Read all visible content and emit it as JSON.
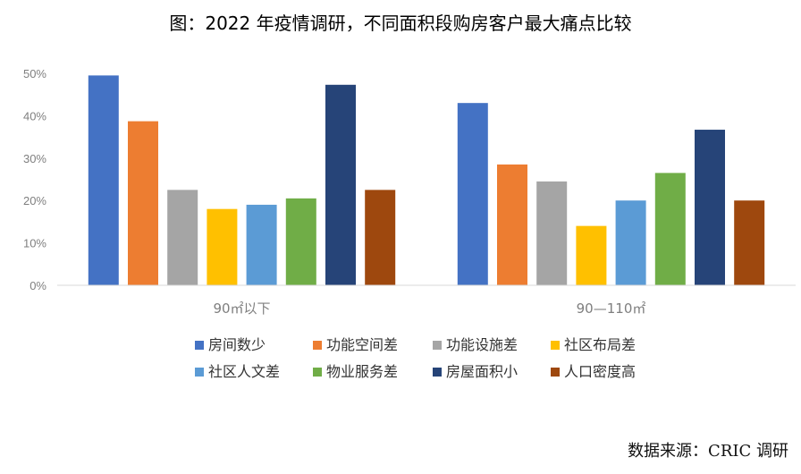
{
  "title": "图：2022 年疫情调研，不同面积段购房客户最大痛点比较",
  "source": "数据来源：CRIC 调研",
  "chart_data": {
    "type": "bar",
    "categories": [
      "90㎡以下",
      "90—110㎡"
    ],
    "yticks": [
      "0%",
      "10%",
      "20%",
      "30%",
      "40%",
      "50%"
    ],
    "ylim": [
      0,
      50
    ],
    "grid": false,
    "legend_position": "bottom",
    "series": [
      {
        "name": "房间数少",
        "color": "#4472C4",
        "values": [
          49.5,
          43
        ]
      },
      {
        "name": "功能空间差",
        "color": "#ED7D31",
        "values": [
          38.7,
          28.5
        ]
      },
      {
        "name": "功能设施差",
        "color": "#A5A5A5",
        "values": [
          22.5,
          24.5
        ]
      },
      {
        "name": "社区布局差",
        "color": "#FFC000",
        "values": [
          18,
          14
        ]
      },
      {
        "name": "社区人文差",
        "color": "#5B9BD5",
        "values": [
          19,
          20
        ]
      },
      {
        "name": "物业服务差",
        "color": "#70AD47",
        "values": [
          20.5,
          26.5
        ]
      },
      {
        "name": "房屋面积小",
        "color": "#264478",
        "values": [
          47.3,
          36.7
        ]
      },
      {
        "name": "人口密度高",
        "color": "#9E480E",
        "values": [
          22.5,
          20
        ]
      }
    ]
  }
}
